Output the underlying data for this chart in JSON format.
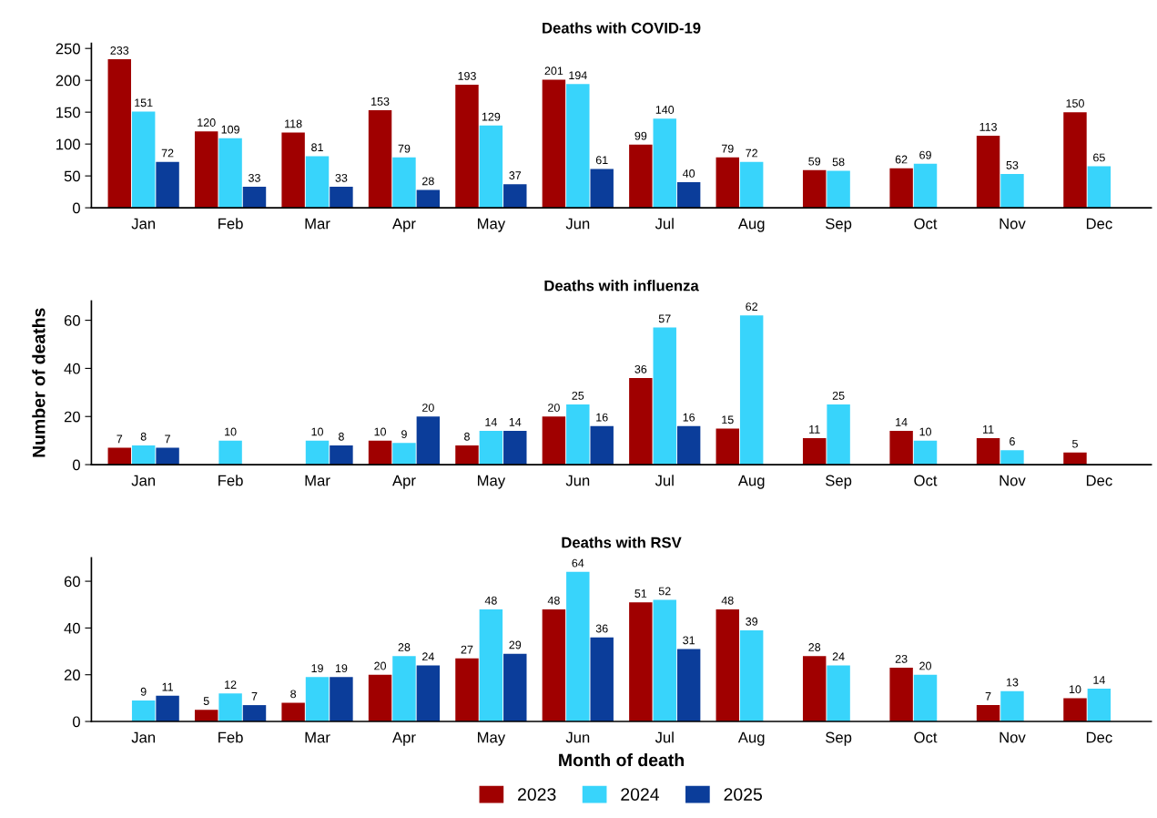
{
  "chart_data": [
    {
      "type": "bar",
      "title": "Deaths with COVID-19",
      "categories": [
        "Jan",
        "Feb",
        "Mar",
        "Apr",
        "May",
        "Jun",
        "Jul",
        "Aug",
        "Sep",
        "Oct",
        "Nov",
        "Dec"
      ],
      "series": [
        {
          "color": "#a00000",
          "values": [
            233,
            120,
            118,
            153,
            193,
            201,
            99,
            79,
            59,
            62,
            113,
            150
          ]
        },
        {
          "color": "#38d4fb",
          "values": [
            151,
            109,
            81,
            79,
            129,
            194,
            140,
            72,
            58,
            69,
            53,
            65
          ]
        },
        {
          "color": "#0b3d9a",
          "values": [
            72,
            33,
            33,
            28,
            37,
            61,
            40,
            null,
            null,
            null,
            null,
            null
          ]
        }
      ],
      "ylim": [
        0,
        258
      ],
      "yticks": [
        0,
        50,
        100,
        150,
        200,
        250
      ],
      "data_labels": true,
      "grid": false
    },
    {
      "type": "bar",
      "title": "Deaths with influenza",
      "ylabel": "Number of deaths",
      "categories": [
        "Jan",
        "Feb",
        "Mar",
        "Apr",
        "May",
        "Jun",
        "Jul",
        "Aug",
        "Sep",
        "Oct",
        "Nov",
        "Dec"
      ],
      "series": [
        {
          "color": "#a00000",
          "values": [
            7,
            null,
            null,
            10,
            8,
            20,
            36,
            15,
            11,
            14,
            11,
            5
          ]
        },
        {
          "color": "#38d4fb",
          "values": [
            8,
            10,
            10,
            9,
            14,
            25,
            57,
            62,
            25,
            10,
            6,
            null
          ]
        },
        {
          "color": "#0b3d9a",
          "values": [
            7,
            null,
            8,
            20,
            14,
            16,
            16,
            null,
            null,
            null,
            null,
            null
          ]
        }
      ],
      "ylim": [
        0,
        68
      ],
      "yticks": [
        0,
        20,
        40,
        60
      ],
      "data_labels": true,
      "grid": false
    },
    {
      "type": "bar",
      "title": "Deaths with RSV",
      "xlabel": "Month of death",
      "categories": [
        "Jan",
        "Feb",
        "Mar",
        "Apr",
        "May",
        "Jun",
        "Jul",
        "Aug",
        "Sep",
        "Oct",
        "Nov",
        "Dec"
      ],
      "series": [
        {
          "name": "2023",
          "color": "#a00000",
          "values": [
            null,
            5,
            8,
            20,
            27,
            48,
            51,
            48,
            28,
            23,
            7,
            10
          ]
        },
        {
          "name": "2024",
          "color": "#38d4fb",
          "values": [
            9,
            12,
            19,
            28,
            48,
            64,
            52,
            39,
            24,
            20,
            13,
            14
          ]
        },
        {
          "name": "2025",
          "color": "#0b3d9a",
          "values": [
            11,
            7,
            19,
            24,
            29,
            36,
            31,
            null,
            null,
            null,
            null,
            null
          ]
        }
      ],
      "ylim": [
        0,
        70
      ],
      "yticks": [
        0,
        20,
        40,
        60
      ],
      "data_labels": true,
      "grid": false,
      "legend": "bottom"
    }
  ]
}
